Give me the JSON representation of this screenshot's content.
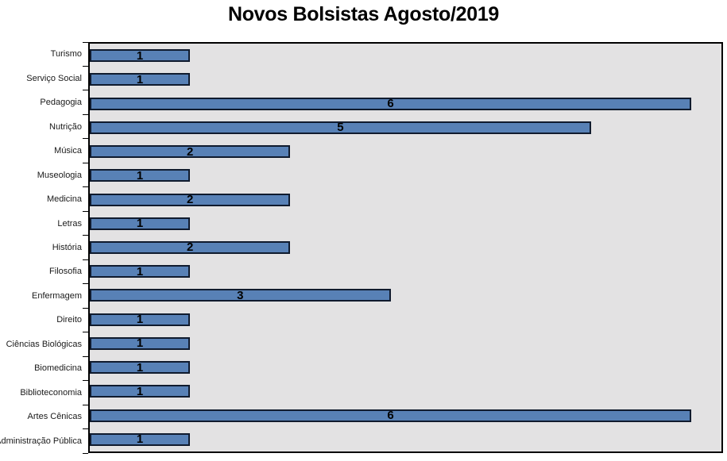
{
  "title": "Novos Bolsistas Agosto/2019",
  "chart_data": {
    "type": "bar",
    "orientation": "horizontal",
    "title": "Novos Bolsistas Agosto/2019",
    "xlabel": "",
    "ylabel": "",
    "categories": [
      "Turismo",
      "Serviço Social",
      "Pedagogia",
      "Nutrição",
      "Música",
      "Museologia",
      "Medicina",
      "Letras",
      "História",
      "Filosofia",
      "Enfermagem",
      "Direito",
      "Ciências Biológicas",
      "Biomedicina",
      "Biblioteconomia",
      "Artes Cênicas",
      "Administração Pública"
    ],
    "values": [
      1,
      1,
      6,
      5,
      2,
      1,
      2,
      1,
      2,
      1,
      3,
      1,
      1,
      1,
      1,
      6,
      1
    ],
    "xlim": [
      0,
      6.3
    ],
    "grid": false,
    "legend": false,
    "data_labels": true,
    "data_label_position": "center",
    "colors": {
      "bar_fill": "#5881B6",
      "bar_border": "#101B2E",
      "plot_bg": "#E3E2E3",
      "plot_border": "#000000",
      "axis": "#000000",
      "label_text": "#1A1A1A",
      "value_text": "#000000",
      "page_bg": "#FFFFFF"
    }
  }
}
